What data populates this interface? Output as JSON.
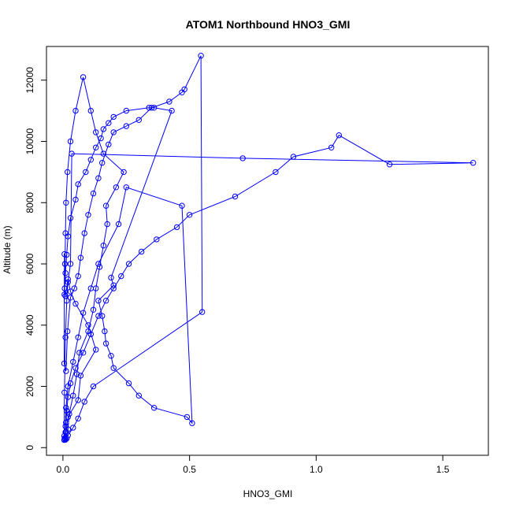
{
  "chart_data": {
    "type": "line",
    "title": "ATOM1 Northbound HNO3_GMI",
    "xlabel": "HNO3_GMI",
    "ylabel": "Altitude (m)",
    "xlim": [
      -0.065,
      1.68
    ],
    "ylim": [
      -250,
      13100
    ],
    "x_ticks": [
      0.0,
      0.5,
      1.0,
      1.5
    ],
    "x_tick_labels": [
      "0.0",
      "0.5",
      "1.0",
      "1.5"
    ],
    "y_ticks": [
      0,
      2000,
      4000,
      6000,
      8000,
      10000,
      12000
    ],
    "y_tick_labels": [
      "0",
      "2000",
      "4000",
      "6000",
      "8000",
      "10000",
      "12000"
    ],
    "grid": false,
    "legend": "none",
    "series": [
      {
        "color": "#0000ff",
        "marker": "open-circle",
        "x": [
          0.006,
          0.005,
          0.012,
          0.018,
          0.03,
          0.045,
          0.06,
          0.07,
          0.085,
          0.1,
          0.12,
          0.14,
          0.155,
          0.18,
          0.2,
          0.25,
          0.3,
          0.35,
          0.42,
          0.47,
          0.48,
          0.545,
          0.55,
          0.12,
          0.085,
          0.06,
          0.04,
          0.02,
          0.01,
          0.006,
          0.008,
          0.01,
          0.012,
          0.015,
          0.02,
          0.03,
          0.05,
          0.08,
          0.11,
          0.14,
          0.17,
          0.2,
          0.23,
          0.26,
          0.31,
          0.37,
          0.45,
          0.5,
          0.68,
          0.84,
          0.91,
          1.06,
          1.09,
          1.29,
          1.62,
          0.71,
          0.035,
          0.03,
          0.02,
          0.015,
          0.01,
          0.006,
          0.005,
          0.005,
          0.012,
          0.02,
          0.06,
          0.07,
          0.13,
          0.1,
          0.05,
          0.03,
          0.02,
          0.01,
          0.007,
          0.01,
          0.015,
          0.02,
          0.03,
          0.05,
          0.06,
          0.09,
          0.11,
          0.13,
          0.15,
          0.16,
          0.18,
          0.2,
          0.25,
          0.34,
          0.36,
          0.43,
          0.19,
          0.2,
          0.14,
          0.155,
          0.165,
          0.17,
          0.19,
          0.2,
          0.26,
          0.3,
          0.36,
          0.49,
          0.51,
          0.47,
          0.25,
          0.22,
          0.14,
          0.11,
          0.08,
          0.06,
          0.04,
          0.02,
          0.012,
          0.01,
          0.009,
          0.01,
          0.015,
          0.02,
          0.025,
          0.04,
          0.055,
          0.065,
          0.1,
          0.12,
          0.13,
          0.145,
          0.16,
          0.175,
          0.17,
          0.21,
          0.24,
          0.16,
          0.13,
          0.11,
          0.08,
          0.05,
          0.03,
          0.018,
          0.012,
          0.01,
          0.008,
          0.006
        ],
        "y": [
          6320,
          2750,
          2500,
          3800,
          4900,
          5200,
          5600,
          6200,
          7000,
          7600,
          8300,
          8800,
          9300,
          9900,
          10300,
          10500,
          10700,
          11100,
          11300,
          11600,
          11700,
          12800,
          4430,
          2000,
          1500,
          950,
          650,
          400,
          280,
          260,
          320,
          500,
          820,
          1200,
          1650,
          2100,
          2600,
          3100,
          3700,
          4300,
          4800,
          5200,
          5600,
          6000,
          6400,
          6800,
          7200,
          7600,
          8200,
          9000,
          9500,
          9800,
          10200,
          9250,
          9300,
          9450,
          9600,
          6000,
          5400,
          4800,
          3600,
          1800,
          380,
          250,
          520,
          1000,
          1550,
          2350,
          3200,
          4000,
          4700,
          5100,
          5500,
          4950,
          5200,
          5700,
          6300,
          6900,
          7500,
          8100,
          8600,
          9000,
          9400,
          9800,
          10100,
          10400,
          10600,
          10800,
          11000,
          11100,
          11100,
          11000,
          5550,
          5300,
          4800,
          4300,
          3800,
          3400,
          3000,
          2600,
          2100,
          1700,
          1300,
          1000,
          800,
          7900,
          8500,
          7300,
          6000,
          5200,
          4400,
          3600,
          2800,
          2000,
          1300,
          700,
          300,
          260,
          300,
          600,
          1100,
          1700,
          2400,
          3100,
          3800,
          4500,
          5200,
          5900,
          6600,
          7300,
          7900,
          8500,
          9000,
          9600,
          10300,
          11000,
          12100,
          11000,
          10000,
          9000,
          8000,
          7000,
          6000,
          5000
        ]
      }
    ]
  }
}
